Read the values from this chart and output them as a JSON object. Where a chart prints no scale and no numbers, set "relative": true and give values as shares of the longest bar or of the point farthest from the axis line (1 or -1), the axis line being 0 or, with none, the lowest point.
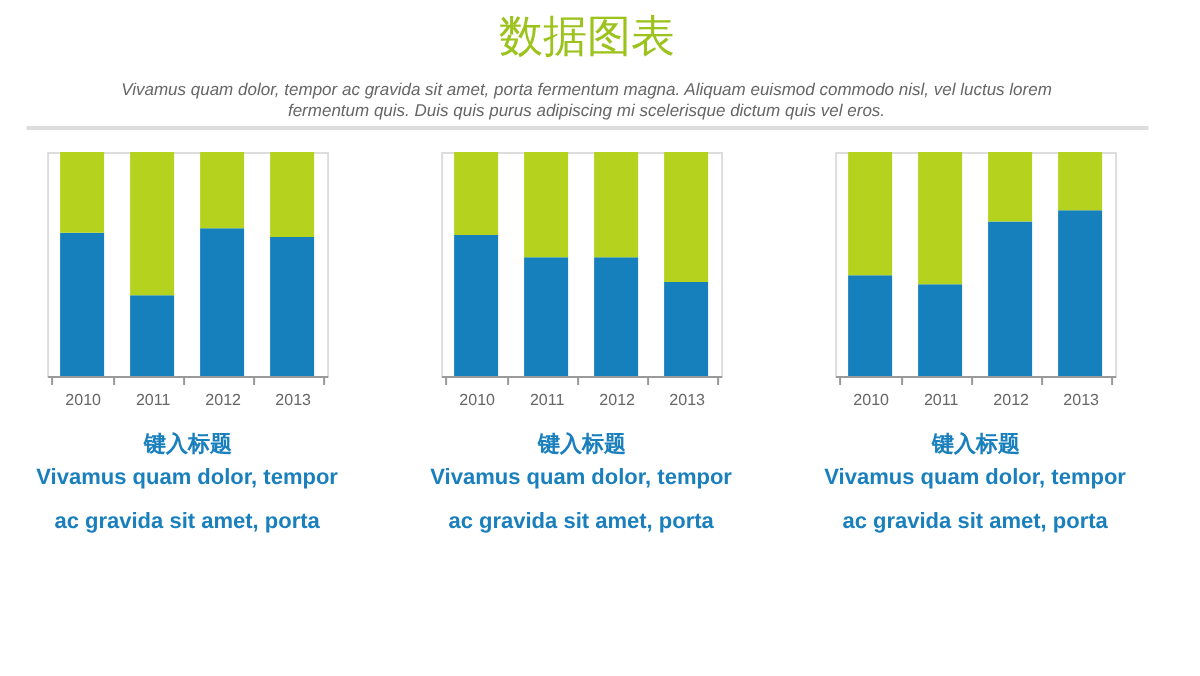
{
  "chart_data": [
    {
      "type": "other",
      "title": "数据图表",
      "subtitle": "Vivamus quam dolor, tempor ac gravida sit amet, porta fermentum magna. Aliquam euismod commodo nisl, vel luctus lorem\nfermentum quis. Duis quis purus adipiscing mi scelerisque dictum quis vel eros."
    },
    {
      "type": "bar",
      "categories": [
        "2010",
        "2011",
        "2012",
        "2013"
      ],
      "stacked": true,
      "relative": true,
      "xlabel": "键入标题",
      "annotations": [
        "Vivamus quam dolor, tempor\nac gravida sit amet, porta"
      ],
      "series": [
        {
          "color": "#1680bd",
          "values": [
            0.64,
            0.36,
            0.66,
            0.62
          ]
        },
        {
          "color": "#b5d31e",
          "values": [
            0.36,
            0.64,
            0.34,
            0.38
          ]
        }
      ]
    },
    {
      "type": "bar",
      "categories": [
        "2010",
        "2011",
        "2012",
        "2013"
      ],
      "stacked": true,
      "relative": true,
      "xlabel": "键入标题",
      "annotations": [
        "Vivamus quam dolor, tempor\nac gravida sit amet, porta"
      ],
      "series": [
        {
          "color": "#1680bd",
          "values": [
            0.63,
            0.53,
            0.53,
            0.42
          ]
        },
        {
          "color": "#b5d31e",
          "values": [
            0.37,
            0.47,
            0.47,
            0.58
          ]
        }
      ]
    },
    {
      "type": "bar",
      "categories": [
        "2010",
        "2011",
        "2012",
        "2013"
      ],
      "stacked": true,
      "relative": true,
      "xlabel": "键入标题",
      "annotations": [
        "Vivamus quam dolor, tempor\nac gravida sit amet, porta"
      ],
      "series": [
        {
          "color": "#1680bd",
          "values": [
            0.45,
            0.41,
            0.69,
            0.74
          ]
        },
        {
          "color": "#b5d31e",
          "values": [
            0.55,
            0.59,
            0.31,
            0.26
          ]
        }
      ]
    }
  ]
}
